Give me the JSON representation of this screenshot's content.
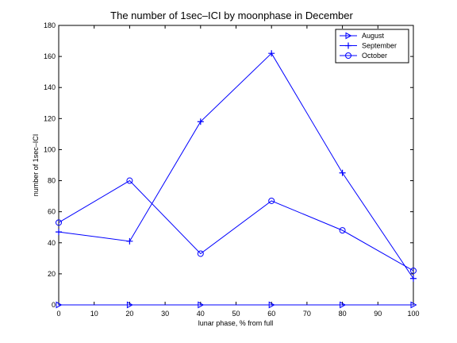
{
  "chart_data": {
    "type": "line",
    "title": "The number of 1sec–ICI by moonphase in December",
    "xlabel": "lunar phase, % from full",
    "ylabel": "number of 1sec–ICI",
    "xlim": [
      0,
      100
    ],
    "ylim": [
      0,
      180
    ],
    "x_ticks": [
      0,
      10,
      20,
      30,
      40,
      50,
      60,
      70,
      80,
      90,
      100
    ],
    "y_ticks": [
      0,
      20,
      40,
      60,
      80,
      100,
      120,
      140,
      160,
      180
    ],
    "x": [
      0,
      20,
      40,
      60,
      80,
      100
    ],
    "grid": false,
    "legend_position": "top-right",
    "series": [
      {
        "name": "August",
        "marker": "triangle-right",
        "color": "#0000ff",
        "values": [
          0,
          0,
          0,
          0,
          0,
          0
        ]
      },
      {
        "name": "September",
        "marker": "plus",
        "color": "#0000ff",
        "values": [
          47,
          41,
          118,
          162,
          85,
          17
        ]
      },
      {
        "name": "October",
        "marker": "circle",
        "color": "#0000ff",
        "values": [
          53,
          80,
          33,
          67,
          48,
          22
        ]
      }
    ]
  }
}
